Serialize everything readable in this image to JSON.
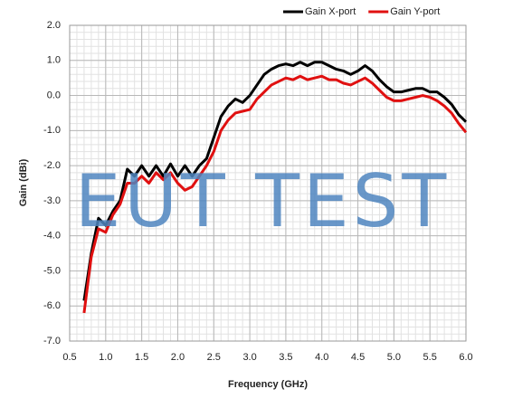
{
  "chart_data": {
    "type": "line",
    "x_label": "Frequency (GHz)",
    "y_label": "Gain (dBi)",
    "watermark": "EUT TEST",
    "x": [
      0.7,
      0.8,
      0.9,
      1.0,
      1.1,
      1.2,
      1.3,
      1.4,
      1.5,
      1.6,
      1.7,
      1.8,
      1.9,
      2.0,
      2.1,
      2.2,
      2.3,
      2.4,
      2.5,
      2.6,
      2.7,
      2.8,
      2.9,
      3.0,
      3.1,
      3.2,
      3.3,
      3.4,
      3.5,
      3.6,
      3.7,
      3.8,
      3.9,
      4.0,
      4.1,
      4.2,
      4.3,
      4.4,
      4.5,
      4.6,
      4.7,
      4.8,
      4.9,
      5.0,
      5.1,
      5.2,
      5.3,
      5.4,
      5.5,
      5.6,
      5.7,
      5.8,
      5.9,
      6.0
    ],
    "series": [
      {
        "name": "Gain X-port",
        "color": "#000000",
        "values": [
          -5.85,
          -4.5,
          -3.5,
          -3.7,
          -3.3,
          -3.0,
          -2.1,
          -2.3,
          -2.0,
          -2.3,
          -2.0,
          -2.3,
          -1.95,
          -2.3,
          -2.0,
          -2.3,
          -2.0,
          -1.8,
          -1.2,
          -0.6,
          -0.3,
          -0.1,
          -0.2,
          0.0,
          0.3,
          0.6,
          0.75,
          0.85,
          0.9,
          0.85,
          0.95,
          0.85,
          0.95,
          0.95,
          0.85,
          0.75,
          0.7,
          0.6,
          0.7,
          0.85,
          0.7,
          0.45,
          0.25,
          0.1,
          0.1,
          0.15,
          0.2,
          0.2,
          0.1,
          0.1,
          -0.05,
          -0.25,
          -0.55,
          -0.75
        ]
      },
      {
        "name": "Gain Y-port",
        "color": "#e01010",
        "values": [
          -6.2,
          -4.6,
          -3.8,
          -3.9,
          -3.4,
          -3.1,
          -2.5,
          -2.5,
          -2.3,
          -2.5,
          -2.2,
          -2.4,
          -2.2,
          -2.5,
          -2.7,
          -2.6,
          -2.3,
          -2.0,
          -1.6,
          -1.0,
          -0.7,
          -0.5,
          -0.45,
          -0.4,
          -0.1,
          0.1,
          0.3,
          0.4,
          0.5,
          0.45,
          0.55,
          0.45,
          0.5,
          0.55,
          0.45,
          0.45,
          0.35,
          0.3,
          0.4,
          0.5,
          0.35,
          0.15,
          -0.05,
          -0.15,
          -0.15,
          -0.1,
          -0.05,
          0.0,
          -0.05,
          -0.15,
          -0.3,
          -0.5,
          -0.8,
          -1.05
        ]
      }
    ],
    "xlim": [
      0.5,
      6.0
    ],
    "xticks": [
      0.5,
      {
        "value": 1.0,
        "label": "1.0"
      },
      1.5,
      {
        "value": 2.0,
        "label": "2.0"
      },
      2.5,
      {
        "value": 3.0,
        "label": "3.0"
      },
      3.5,
      {
        "value": 4.0,
        "label": "4.0"
      },
      4.5,
      {
        "value": 5.0,
        "label": "5.0"
      },
      5.5,
      {
        "value": 6.0,
        "label": "6.0"
      }
    ],
    "ylim": [
      -7.0,
      2.0
    ],
    "yticks": [
      {
        "value": 2.0,
        "label": "2.0"
      },
      {
        "value": 1.0,
        "label": "1.0"
      },
      {
        "value": 0.0,
        "label": "0.0"
      },
      {
        "value": -1.0,
        "label": "-1.0"
      },
      {
        "value": -2.0,
        "label": "-2.0"
      },
      {
        "value": -3.0,
        "label": "-3.0"
      },
      {
        "value": -4.0,
        "label": "-4.0"
      },
      {
        "value": -5.0,
        "label": "-5.0"
      },
      {
        "value": -6.0,
        "label": "-6.0"
      },
      {
        "value": -7.0,
        "label": "-7.0"
      }
    ],
    "grid": true,
    "minor_grid": true,
    "legend": "top-right"
  }
}
